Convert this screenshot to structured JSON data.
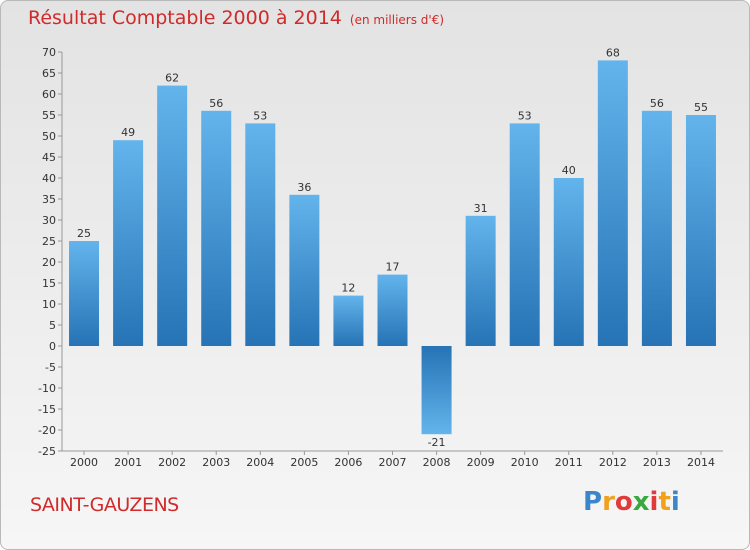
{
  "header": {
    "title": "Résultat Comptable 2000 à 2014",
    "subtitle": "(en milliers d'€)"
  },
  "footer": {
    "town": "SAINT-GAUZENS",
    "logo_letters": [
      "P",
      "r",
      "o",
      "x",
      "i",
      "t",
      "i"
    ],
    "logo_colors": [
      "#3a86c8",
      "#f0a11e",
      "#e03a3a",
      "#3aa841",
      "#e03a3a",
      "#f0a11e",
      "#3a86c8"
    ]
  },
  "colors": {
    "bar_light": "#63b4ec",
    "bar_dark": "#2673b5",
    "title": "#d02a2a"
  },
  "chart_data": {
    "type": "bar",
    "categories": [
      "2000",
      "2001",
      "2002",
      "2003",
      "2004",
      "2005",
      "2006",
      "2007",
      "2008",
      "2009",
      "2010",
      "2011",
      "2012",
      "2013",
      "2014"
    ],
    "values": [
      25,
      49,
      62,
      56,
      53,
      36,
      12,
      17,
      -21,
      31,
      53,
      40,
      68,
      56,
      55
    ],
    "title": "Résultat Comptable 2000 à 2014",
    "xlabel": "",
    "ylabel": "",
    "ylim": [
      -25,
      70
    ],
    "yticks": [
      -25,
      -20,
      -15,
      -10,
      -5,
      0,
      5,
      10,
      15,
      20,
      25,
      30,
      35,
      40,
      45,
      50,
      55,
      60,
      65,
      70
    ],
    "grid": false,
    "legend": "none"
  }
}
